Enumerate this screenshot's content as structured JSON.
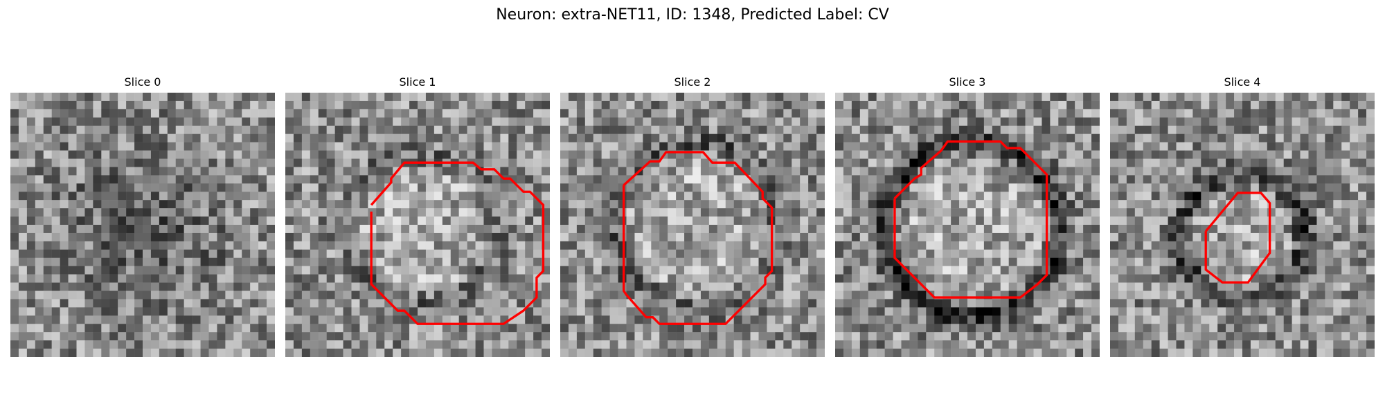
{
  "figure": {
    "title": "Neuron: extra-NET11, ID: 1348, Predicted Label: CV"
  },
  "slices": [
    {
      "title": "Slice 0",
      "has_contour": false,
      "contour_color": "#ff0000"
    },
    {
      "title": "Slice 1",
      "has_contour": true,
      "contour_color": "#ff0000"
    },
    {
      "title": "Slice 2",
      "has_contour": true,
      "contour_color": "#ff0000"
    },
    {
      "title": "Slice 3",
      "has_contour": true,
      "contour_color": "#ff0000"
    },
    {
      "title": "Slice 4",
      "has_contour": true,
      "contour_color": "#ff0000"
    }
  ],
  "colors": {
    "background": "#ffffff",
    "contour": "#ff0000",
    "colormap": "grayscale"
  }
}
